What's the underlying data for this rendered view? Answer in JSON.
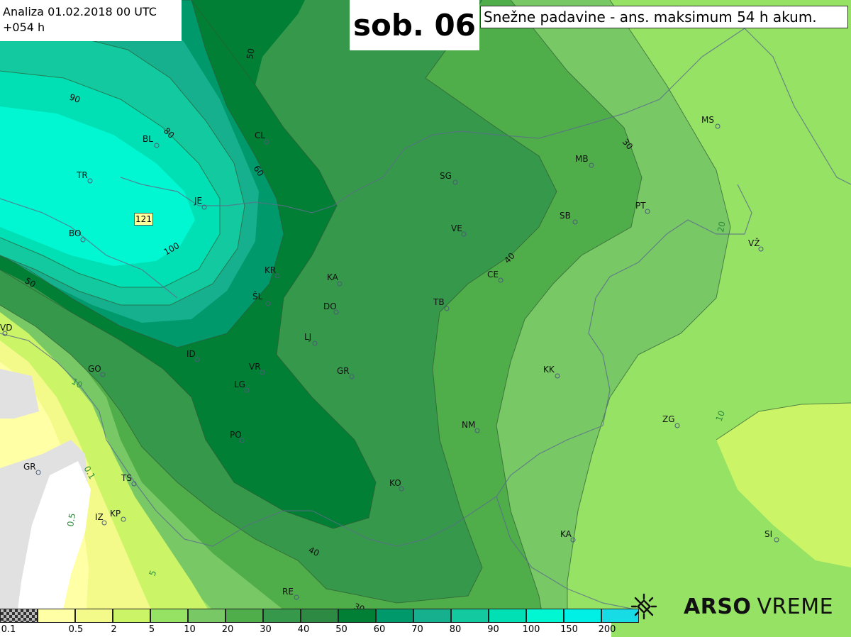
{
  "header": {
    "analysis_line1": "Analiza 01.02.2018 00 UTC",
    "analysis_line2": "+054 h",
    "day": "sob. 06",
    "title": "Snežne padavine - ans. maksimum 54 h akum."
  },
  "map": {
    "max_value": "121",
    "cities": [
      {
        "name": "MS"
      },
      {
        "name": "MB"
      },
      {
        "name": "CL"
      },
      {
        "name": "BL"
      },
      {
        "name": "TR"
      },
      {
        "name": "JE"
      },
      {
        "name": "BO"
      },
      {
        "name": "SG"
      },
      {
        "name": "SB"
      },
      {
        "name": "PT"
      },
      {
        "name": "VE"
      },
      {
        "name": "VŽ"
      },
      {
        "name": "KA"
      },
      {
        "name": "KR"
      },
      {
        "name": "CE"
      },
      {
        "name": "ŠL"
      },
      {
        "name": "DO"
      },
      {
        "name": "TB"
      },
      {
        "name": "VD"
      },
      {
        "name": "LJ"
      },
      {
        "name": "ID"
      },
      {
        "name": "VR"
      },
      {
        "name": "GO"
      },
      {
        "name": "KK"
      },
      {
        "name": "GR"
      },
      {
        "name": "LG"
      },
      {
        "name": "NM"
      },
      {
        "name": "ZG"
      },
      {
        "name": "PO"
      },
      {
        "name": "GR"
      },
      {
        "name": "TS"
      },
      {
        "name": "KO"
      },
      {
        "name": "KP"
      },
      {
        "name": "IZ"
      },
      {
        "name": "KA"
      },
      {
        "name": "SI"
      },
      {
        "name": "RE"
      }
    ],
    "contour_labels": [
      "50",
      "90",
      "80",
      "60",
      "100",
      "50",
      "30",
      "40",
      "20",
      "10",
      "10",
      "0.1",
      "0.5",
      "5",
      "40",
      "30"
    ]
  },
  "legend": {
    "colors": [
      "#7a7a7a",
      "#ffffa5",
      "#f3fa89",
      "#cbf566",
      "#96e264",
      "#79c866",
      "#4fae4a",
      "#36984a",
      "#2c8a43",
      "#007f35",
      "#00996b",
      "#16b08e",
      "#12c9a0",
      "#00e0b4",
      "#00f7d2",
      "#00f0e6",
      "#17dbe5"
    ],
    "ticks": [
      "0.1",
      "0.5",
      "2",
      "5",
      "10",
      "20",
      "30",
      "40",
      "50",
      "60",
      "70",
      "80",
      "90",
      "100",
      "150",
      "200"
    ]
  },
  "brand": {
    "name_bold": "ARSO",
    "name_light": "VREME",
    "logo_icon": "weather-satellite-icon"
  }
}
